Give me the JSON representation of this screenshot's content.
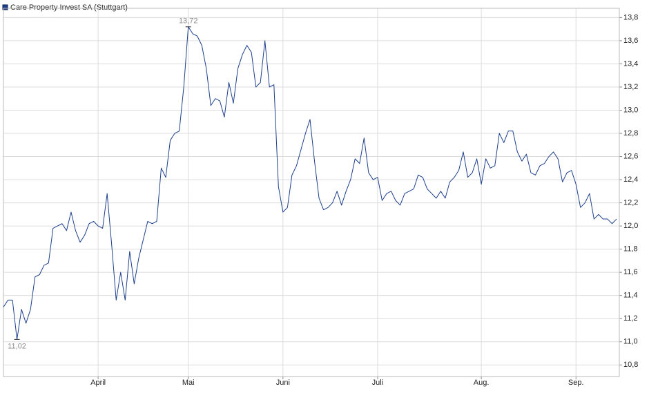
{
  "chart_data": {
    "type": "line",
    "series": [
      {
        "name": "Care Property Invest SA (Stuttgart)",
        "color": "#1c3f8c",
        "values": [
          11.3,
          11.36,
          11.36,
          11.02,
          11.28,
          11.16,
          11.28,
          11.56,
          11.58,
          11.66,
          11.68,
          11.98,
          12.0,
          12.02,
          11.96,
          12.12,
          11.96,
          11.86,
          11.92,
          12.02,
          12.04,
          12.0,
          11.98,
          12.28,
          11.84,
          11.36,
          11.6,
          11.36,
          11.78,
          11.5,
          11.72,
          11.88,
          12.04,
          12.02,
          12.04,
          12.5,
          12.42,
          12.74,
          12.8,
          12.82,
          13.2,
          13.72,
          13.66,
          13.64,
          13.56,
          13.36,
          13.04,
          13.1,
          13.08,
          12.94,
          13.24,
          13.06,
          13.36,
          13.48,
          13.56,
          13.5,
          13.2,
          13.24,
          13.6,
          13.2,
          13.22,
          12.34,
          12.12,
          12.16,
          12.44,
          12.52,
          12.66,
          12.8,
          12.92,
          12.56,
          12.24,
          12.14,
          12.16,
          12.2,
          12.3,
          12.18,
          12.3,
          12.4,
          12.58,
          12.54,
          12.76,
          12.46,
          12.4,
          12.42,
          12.22,
          12.28,
          12.3,
          12.22,
          12.18,
          12.28,
          12.3,
          12.32,
          12.44,
          12.42,
          12.32,
          12.28,
          12.24,
          12.3,
          12.24,
          12.38,
          12.42,
          12.48,
          12.64,
          12.42,
          12.46,
          12.58,
          12.36,
          12.58,
          12.5,
          12.52,
          12.8,
          12.72,
          12.82,
          12.82,
          12.64,
          12.56,
          12.62,
          12.46,
          12.44,
          12.52,
          12.54,
          12.6,
          12.64,
          12.58,
          12.38,
          12.46,
          12.48,
          12.36,
          12.16,
          12.2,
          12.28,
          12.06,
          12.1,
          12.06,
          12.06,
          12.02,
          12.06
        ]
      }
    ],
    "xlim": [
      0,
      136
    ],
    "xticks": [
      {
        "value": 21,
        "label": "April"
      },
      {
        "value": 41,
        "label": "Mai"
      },
      {
        "value": 62,
        "label": "Juni"
      },
      {
        "value": 83,
        "label": "Juli"
      },
      {
        "value": 106,
        "label": "Aug."
      },
      {
        "value": 127,
        "label": "Sep."
      }
    ],
    "ylim": [
      10.7,
      13.88
    ],
    "yticks": [
      {
        "value": 10.8,
        "label": "10,8"
      },
      {
        "value": 11.0,
        "label": "11,0"
      },
      {
        "value": 11.2,
        "label": "11,2"
      },
      {
        "value": 11.4,
        "label": "11,4"
      },
      {
        "value": 11.6,
        "label": "11,6"
      },
      {
        "value": 11.8,
        "label": "11,8"
      },
      {
        "value": 12.0,
        "label": "12,0"
      },
      {
        "value": 12.2,
        "label": "12,2"
      },
      {
        "value": 12.4,
        "label": "12,4"
      },
      {
        "value": 12.6,
        "label": "12,6"
      },
      {
        "value": 12.8,
        "label": "12,8"
      },
      {
        "value": 13.0,
        "label": "13,0"
      },
      {
        "value": 13.2,
        "label": "13,2"
      },
      {
        "value": 13.4,
        "label": "13,4"
      },
      {
        "value": 13.6,
        "label": "13,6"
      },
      {
        "value": 13.8,
        "label": "13,8"
      }
    ],
    "annotations": [
      {
        "value": 13.72,
        "label": "13,72"
      },
      {
        "value": 11.02,
        "label": "11,02"
      }
    ],
    "grid": true
  }
}
